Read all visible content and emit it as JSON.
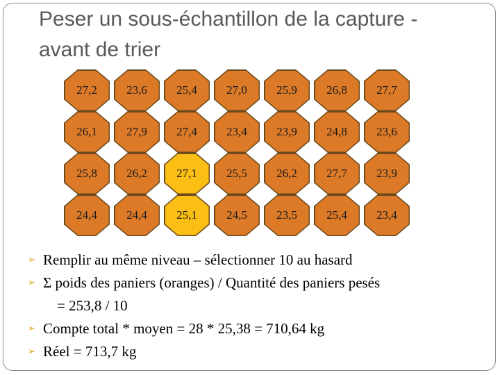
{
  "title": "Peser un sous-échantillon de la capture - avant de trier",
  "grid": {
    "rows": [
      [
        {
          "v": "27,2",
          "c": "orange"
        },
        {
          "v": "23,6",
          "c": "orange"
        },
        {
          "v": "25,4",
          "c": "orange"
        },
        {
          "v": "27,0",
          "c": "orange"
        },
        {
          "v": "25,9",
          "c": "orange"
        },
        {
          "v": "26,8",
          "c": "orange"
        },
        {
          "v": "27,7",
          "c": "orange"
        }
      ],
      [
        {
          "v": "26,1",
          "c": "orange"
        },
        {
          "v": "27,9",
          "c": "orange"
        },
        {
          "v": "27,4",
          "c": "orange"
        },
        {
          "v": "23,4",
          "c": "orange"
        },
        {
          "v": "23,9",
          "c": "orange"
        },
        {
          "v": "24,8",
          "c": "orange"
        },
        {
          "v": "23,6",
          "c": "orange"
        }
      ],
      [
        {
          "v": "25,8",
          "c": "orange"
        },
        {
          "v": "26,2",
          "c": "orange"
        },
        {
          "v": "27,1",
          "c": "yellow"
        },
        {
          "v": "25,5",
          "c": "orange"
        },
        {
          "v": "26,2",
          "c": "orange"
        },
        {
          "v": "27,7",
          "c": "orange"
        },
        {
          "v": "23,9",
          "c": "orange"
        }
      ],
      [
        {
          "v": "24,4",
          "c": "orange"
        },
        {
          "v": "24,4",
          "c": "orange"
        },
        {
          "v": "25,1",
          "c": "yellow"
        },
        {
          "v": "24,5",
          "c": "orange"
        },
        {
          "v": "23,5",
          "c": "orange"
        },
        {
          "v": "25,4",
          "c": "orange"
        },
        {
          "v": "23,4",
          "c": "orange"
        }
      ]
    ]
  },
  "colors": {
    "orange": "#dc7a28",
    "yellow": "#fbbe14",
    "outline": "#6b4a1c",
    "bullet": "#d9a000"
  },
  "bullet_icon": "arrow-bullet-icon",
  "bullets": {
    "b1": "Remplir au même niveau – sélectionner 10 au hasard",
    "b2_line1": "Σ poids des paniers (oranges) / Quantité des paniers pesés",
    "b2_line2": "= 253,8 / 10",
    "b3": "Compte total * moyen = 28 * 25,38 =  710,64 kg",
    "b4": "Réel = 713,7 kg"
  }
}
